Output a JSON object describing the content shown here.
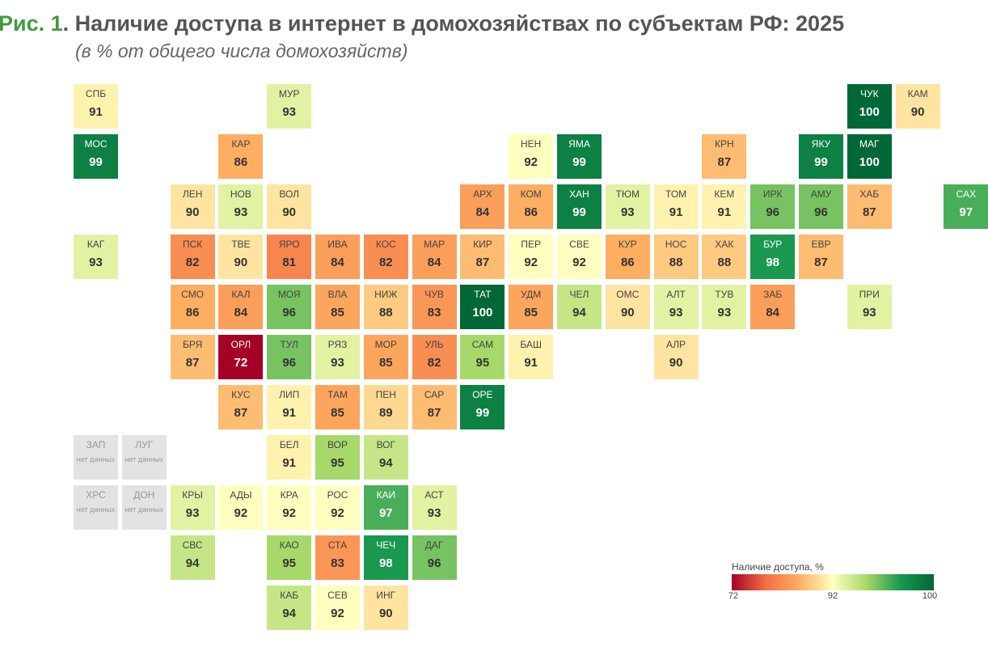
{
  "title": {
    "fig": "Рис. 1",
    "sep": ". ",
    "text": "Наличие доступа в интернет в домохозяйствах по субъектам РФ: 2025"
  },
  "subtitle": "(в % от общего числа домохозяйств)",
  "chart_data": {
    "type": "heatmap",
    "title": "Наличие доступа в интернет в домохозяйствах по субъектам РФ: 2025",
    "subtitle": "(в % от общего числа домохозяйств)",
    "no_data_label": "нет данных",
    "legend": {
      "title": "Наличие доступа, %",
      "min": 72,
      "mid": 92,
      "max": 100,
      "ticks": [
        "72",
        "92",
        "100"
      ],
      "placement": "bottom-right",
      "colors": {
        "min": "#a50026",
        "mid": "#ffffbf",
        "max": "#006837"
      }
    },
    "regions": [
      {
        "code": "СПБ",
        "value": 91,
        "row": 0,
        "col": 0
      },
      {
        "code": "МУР",
        "value": 93,
        "row": 0,
        "col": 4
      },
      {
        "code": "ЧУК",
        "value": 100,
        "row": 0,
        "col": 16
      },
      {
        "code": "КАМ",
        "value": 90,
        "row": 0,
        "col": 17
      },
      {
        "code": "МОС",
        "value": 99,
        "row": 1,
        "col": 0
      },
      {
        "code": "КАР",
        "value": 86,
        "row": 1,
        "col": 3
      },
      {
        "code": "НЕН",
        "value": 92,
        "row": 1,
        "col": 9
      },
      {
        "code": "ЯМА",
        "value": 99,
        "row": 1,
        "col": 10
      },
      {
        "code": "КРН",
        "value": 87,
        "row": 1,
        "col": 13
      },
      {
        "code": "ЯКУ",
        "value": 99,
        "row": 1,
        "col": 15
      },
      {
        "code": "МАГ",
        "value": 100,
        "row": 1,
        "col": 16
      },
      {
        "code": "ЛЕН",
        "value": 90,
        "row": 2,
        "col": 2
      },
      {
        "code": "НОВ",
        "value": 93,
        "row": 2,
        "col": 3
      },
      {
        "code": "ВОЛ",
        "value": 90,
        "row": 2,
        "col": 4
      },
      {
        "code": "АРХ",
        "value": 84,
        "row": 2,
        "col": 8
      },
      {
        "code": "КОМ",
        "value": 86,
        "row": 2,
        "col": 9
      },
      {
        "code": "ХАН",
        "value": 99,
        "row": 2,
        "col": 10
      },
      {
        "code": "ТЮМ",
        "value": 93,
        "row": 2,
        "col": 11
      },
      {
        "code": "ТОМ",
        "value": 91,
        "row": 2,
        "col": 12
      },
      {
        "code": "КЕМ",
        "value": 91,
        "row": 2,
        "col": 13
      },
      {
        "code": "ИРК",
        "value": 96,
        "row": 2,
        "col": 14
      },
      {
        "code": "АМУ",
        "value": 96,
        "row": 2,
        "col": 15
      },
      {
        "code": "ХАБ",
        "value": 87,
        "row": 2,
        "col": 16
      },
      {
        "code": "САХ",
        "value": 97,
        "row": 2,
        "col": 18
      },
      {
        "code": "КАГ",
        "value": 93,
        "row": 3,
        "col": 0
      },
      {
        "code": "ПСК",
        "value": 82,
        "row": 3,
        "col": 2
      },
      {
        "code": "ТВЕ",
        "value": 90,
        "row": 3,
        "col": 3
      },
      {
        "code": "ЯРО",
        "value": 81,
        "row": 3,
        "col": 4
      },
      {
        "code": "ИВА",
        "value": 84,
        "row": 3,
        "col": 5
      },
      {
        "code": "КОС",
        "value": 82,
        "row": 3,
        "col": 6
      },
      {
        "code": "МАР",
        "value": 84,
        "row": 3,
        "col": 7
      },
      {
        "code": "КИР",
        "value": 87,
        "row": 3,
        "col": 8
      },
      {
        "code": "ПЕР",
        "value": 92,
        "row": 3,
        "col": 9
      },
      {
        "code": "СВЕ",
        "value": 92,
        "row": 3,
        "col": 10
      },
      {
        "code": "КУР",
        "value": 86,
        "row": 3,
        "col": 11
      },
      {
        "code": "НОС",
        "value": 88,
        "row": 3,
        "col": 12
      },
      {
        "code": "ХАК",
        "value": 88,
        "row": 3,
        "col": 13
      },
      {
        "code": "БУР",
        "value": 98,
        "row": 3,
        "col": 14
      },
      {
        "code": "ЕВР",
        "value": 87,
        "row": 3,
        "col": 15
      },
      {
        "code": "СМО",
        "value": 86,
        "row": 4,
        "col": 2
      },
      {
        "code": "КАЛ",
        "value": 84,
        "row": 4,
        "col": 3
      },
      {
        "code": "МОЯ",
        "value": 96,
        "row": 4,
        "col": 4
      },
      {
        "code": "ВЛА",
        "value": 85,
        "row": 4,
        "col": 5
      },
      {
        "code": "НИЖ",
        "value": 88,
        "row": 4,
        "col": 6
      },
      {
        "code": "ЧУВ",
        "value": 83,
        "row": 4,
        "col": 7
      },
      {
        "code": "ТАТ",
        "value": 100,
        "row": 4,
        "col": 8
      },
      {
        "code": "УДМ",
        "value": 85,
        "row": 4,
        "col": 9
      },
      {
        "code": "ЧЕЛ",
        "value": 94,
        "row": 4,
        "col": 10
      },
      {
        "code": "ОМС",
        "value": 90,
        "row": 4,
        "col": 11
      },
      {
        "code": "АЛТ",
        "value": 93,
        "row": 4,
        "col": 12
      },
      {
        "code": "ТУВ",
        "value": 93,
        "row": 4,
        "col": 13
      },
      {
        "code": "ЗАБ",
        "value": 84,
        "row": 4,
        "col": 14
      },
      {
        "code": "ПРИ",
        "value": 93,
        "row": 4,
        "col": 16
      },
      {
        "code": "БРЯ",
        "value": 87,
        "row": 5,
        "col": 2
      },
      {
        "code": "ОРЛ",
        "value": 72,
        "row": 5,
        "col": 3
      },
      {
        "code": "ТУЛ",
        "value": 96,
        "row": 5,
        "col": 4
      },
      {
        "code": "РЯЗ",
        "value": 93,
        "row": 5,
        "col": 5
      },
      {
        "code": "МОР",
        "value": 85,
        "row": 5,
        "col": 6
      },
      {
        "code": "УЛЬ",
        "value": 82,
        "row": 5,
        "col": 7
      },
      {
        "code": "САМ",
        "value": 95,
        "row": 5,
        "col": 8
      },
      {
        "code": "БАШ",
        "value": 91,
        "row": 5,
        "col": 9
      },
      {
        "code": "АЛР",
        "value": 90,
        "row": 5,
        "col": 12
      },
      {
        "code": "КУС",
        "value": 87,
        "row": 6,
        "col": 3
      },
      {
        "code": "ЛИП",
        "value": 91,
        "row": 6,
        "col": 4
      },
      {
        "code": "ТАМ",
        "value": 85,
        "row": 6,
        "col": 5
      },
      {
        "code": "ПЕН",
        "value": 89,
        "row": 6,
        "col": 6
      },
      {
        "code": "САР",
        "value": 87,
        "row": 6,
        "col": 7
      },
      {
        "code": "ОРЕ",
        "value": 99,
        "row": 6,
        "col": 8
      },
      {
        "code": "ЗАП",
        "value": null,
        "row": 7,
        "col": 0
      },
      {
        "code": "ЛУГ",
        "value": null,
        "row": 7,
        "col": 1
      },
      {
        "code": "БЕЛ",
        "value": 91,
        "row": 7,
        "col": 4
      },
      {
        "code": "ВОР",
        "value": 95,
        "row": 7,
        "col": 5
      },
      {
        "code": "ВОГ",
        "value": 94,
        "row": 7,
        "col": 6
      },
      {
        "code": "ХРС",
        "value": null,
        "row": 8,
        "col": 0
      },
      {
        "code": "ДОН",
        "value": null,
        "row": 8,
        "col": 1
      },
      {
        "code": "КРЫ",
        "value": 93,
        "row": 8,
        "col": 2
      },
      {
        "code": "АДЫ",
        "value": 92,
        "row": 8,
        "col": 3
      },
      {
        "code": "КРА",
        "value": 92,
        "row": 8,
        "col": 4
      },
      {
        "code": "РОС",
        "value": 92,
        "row": 8,
        "col": 5
      },
      {
        "code": "КАИ",
        "value": 97,
        "row": 8,
        "col": 6
      },
      {
        "code": "АСТ",
        "value": 93,
        "row": 8,
        "col": 7
      },
      {
        "code": "СВС",
        "value": 94,
        "row": 9,
        "col": 2
      },
      {
        "code": "КАО",
        "value": 95,
        "row": 9,
        "col": 4
      },
      {
        "code": "СТА",
        "value": 83,
        "row": 9,
        "col": 5
      },
      {
        "code": "ЧЕЧ",
        "value": 98,
        "row": 9,
        "col": 6
      },
      {
        "code": "ДАГ",
        "value": 96,
        "row": 9,
        "col": 7
      },
      {
        "code": "КАБ",
        "value": 94,
        "row": 10,
        "col": 4
      },
      {
        "code": "СЕВ",
        "value": 92,
        "row": 10,
        "col": 5
      },
      {
        "code": "ИНГ",
        "value": 90,
        "row": 10,
        "col": 6
      }
    ]
  }
}
